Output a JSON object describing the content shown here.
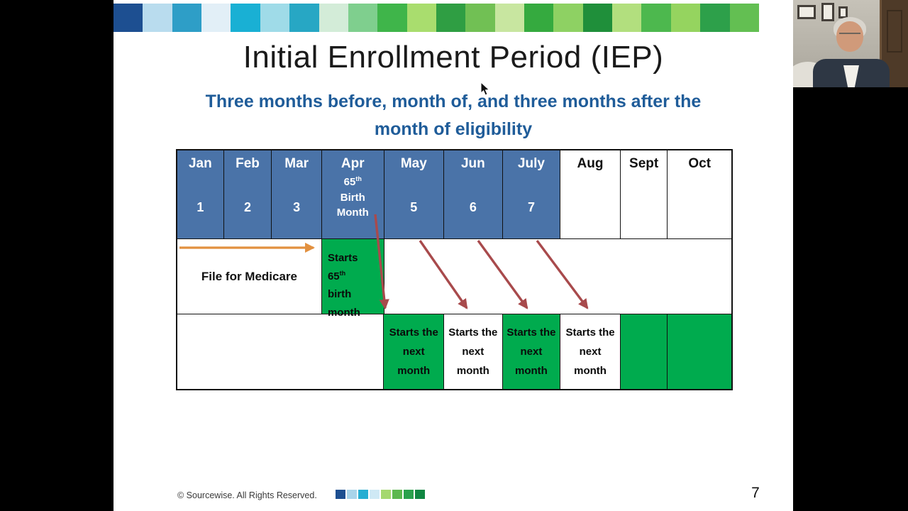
{
  "title": "Initial Enrollment Period (IEP)",
  "subtitle": {
    "line1": "Three months before, month of, and three months after the",
    "line2": "month of eligibility"
  },
  "table": {
    "columns": [
      {
        "month": "Jan",
        "num": "1"
      },
      {
        "month": "Feb",
        "num": "2"
      },
      {
        "month": "Mar",
        "num": "3"
      },
      {
        "month": "Apr",
        "num": "65",
        "sup": "th",
        "line1": "Birth",
        "line2": "Month"
      },
      {
        "month": "May",
        "num": "5"
      },
      {
        "month": "Jun",
        "num": "6"
      },
      {
        "month": "July",
        "num": "7"
      },
      {
        "month": "Aug",
        "num": ""
      },
      {
        "month": "Sept",
        "num": ""
      },
      {
        "month": "Oct",
        "num": ""
      }
    ],
    "file_row": {
      "label": "File for Medicare",
      "green_cell": {
        "l1": "Starts",
        "num": "65",
        "sup": "th",
        "l2": "birth",
        "l3": "month"
      }
    },
    "starts_row": [
      {
        "text": "Starts the next month",
        "green": true
      },
      {
        "text": "Starts the next month",
        "green": false
      },
      {
        "text": "Starts the next month",
        "green": true
      },
      {
        "text": "Starts the next month",
        "green": false
      },
      {
        "text": "",
        "green": true
      },
      {
        "text": "",
        "green": true
      }
    ]
  },
  "footer": {
    "copyright": "© Sourcewise. All Rights Reserved.",
    "page_number": "7"
  },
  "colors": {
    "header_blue": "#4a73a8",
    "cell_green": "#00ab4e",
    "subtitle_blue": "#1f5c99",
    "arrow_orange": "#e2903f",
    "arrow_red": "#a84a4c",
    "top_strip": [
      "#1d4f91",
      "#b9dcee",
      "#2e9ec7",
      "#e2eff7",
      "#19b0d4",
      "#9fdbe8",
      "#27a7c4",
      "#d3ecd8",
      "#7fcf8e",
      "#3fb54a",
      "#a9dd6e",
      "#2f9e43",
      "#71c054",
      "#c8e6a0",
      "#35aa3f",
      "#8ed163",
      "#1f8f3a",
      "#b2df7e",
      "#4db84e",
      "#95d45f",
      "#2da04a",
      "#63bf52"
    ],
    "footer_strip": [
      "#1d4f91",
      "#a8d4ea",
      "#27aed2",
      "#cfe9f5",
      "#a5d86e",
      "#5cb84e",
      "#2aa14c",
      "#118742"
    ]
  }
}
